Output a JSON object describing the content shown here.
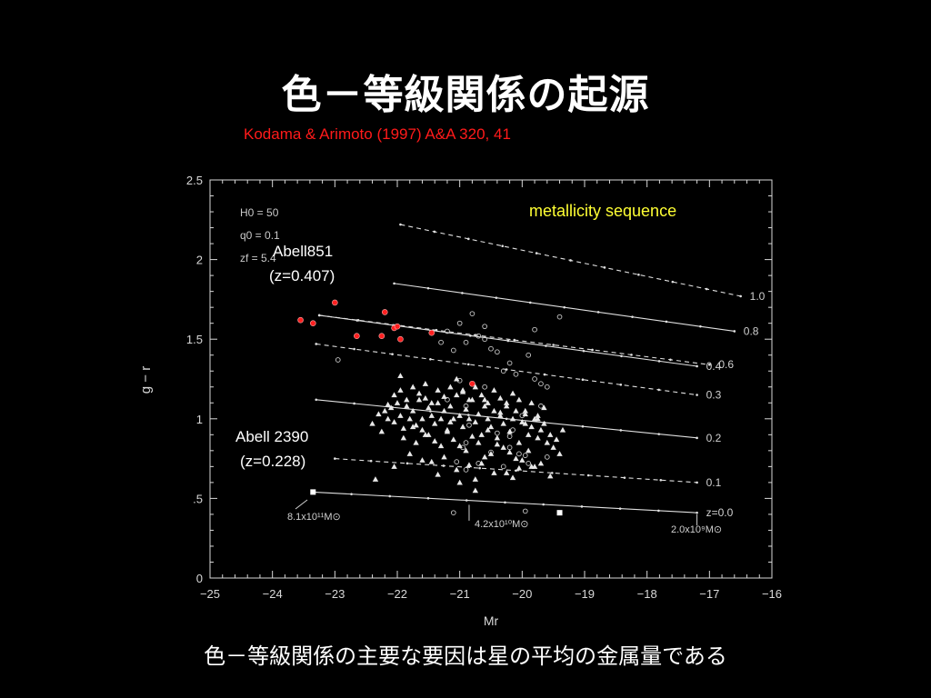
{
  "slide": {
    "title": "色－等級関係の起源",
    "subtitle": "Kodama & Arimoto (1997) A&A 320, 41",
    "caption": "色－等級関係の主要な要因は星の平均の金属量である"
  },
  "chart_data": {
    "type": "scatter",
    "xlabel": "Mr",
    "ylabel": "g − r",
    "xlim": [
      -25,
      -16
    ],
    "ylim": [
      0,
      2.5
    ],
    "x_ticks": [
      "−25",
      "−24",
      "−23",
      "−22",
      "−21",
      "−20",
      "−19",
      "−18",
      "−17",
      "−16"
    ],
    "y_ticks": [
      "0",
      ".5",
      "1",
      "1.5",
      "2",
      "2.5"
    ],
    "grid": false,
    "params": [
      "H0 = 50",
      "q0 = 0.1",
      "zf = 5.4"
    ],
    "annotations": {
      "metallicity": "metallicity sequence",
      "abell851_name": "Abell851",
      "abell851_z": "(z=0.407)",
      "abell2390_name": "Abell 2390",
      "abell2390_z": "(z=0.228)",
      "mass_high": "8.1x10¹¹M⊙",
      "mass_mid": "4.2x10¹⁰M⊙",
      "mass_low": "2.0x10⁹M⊙"
    },
    "colors": {
      "axes": "#d8d8d8",
      "abell851": "#ff2020",
      "metallicity": "#ffff33",
      "model": "#e0e0e0"
    },
    "models": [
      {
        "label": "1.0",
        "dashed": true,
        "x": [
          -21.95,
          -16.5
        ],
        "y": [
          2.22,
          1.77
        ]
      },
      {
        "label": "0.8",
        "dashed": false,
        "x": [
          -22.05,
          -16.6
        ],
        "y": [
          1.85,
          1.55
        ]
      },
      {
        "label": "0.6",
        "dashed": true,
        "x": [
          -23.25,
          -17.0
        ],
        "y": [
          1.65,
          1.34
        ]
      },
      {
        "label": "0.4",
        "dashed": false,
        "x": [
          -23.25,
          -17.2
        ],
        "y": [
          1.65,
          1.33
        ]
      },
      {
        "label": "0.3",
        "dashed": true,
        "x": [
          -23.3,
          -17.2
        ],
        "y": [
          1.47,
          1.15
        ]
      },
      {
        "label": "0.2",
        "dashed": false,
        "x": [
          -23.3,
          -17.2
        ],
        "y": [
          1.12,
          0.88
        ]
      },
      {
        "label": "0.1",
        "dashed": true,
        "x": [
          -23.0,
          -17.2
        ],
        "y": [
          0.75,
          0.6
        ]
      },
      {
        "label": "z=0.0",
        "dashed": false,
        "x": [
          -23.35,
          -17.2
        ],
        "y": [
          0.54,
          0.41
        ]
      }
    ],
    "series": [
      {
        "name": "Abell851",
        "marker": "filled-circle",
        "x": [
          -23.55,
          -23.35,
          -23.0,
          -22.65,
          -22.25,
          -22.2,
          -22.05,
          -22.0,
          -21.95,
          -21.45,
          -20.8
        ],
        "y": [
          1.62,
          1.6,
          1.73,
          1.52,
          1.52,
          1.67,
          1.57,
          1.58,
          1.5,
          1.54,
          1.22
        ]
      },
      {
        "name": "Abell851 open",
        "marker": "open-circle",
        "x": [
          -22.95,
          -21.2,
          -21.1,
          -21.0,
          -20.9,
          -20.7,
          -20.6,
          -20.5,
          -20.3,
          -20.2,
          -20.1,
          -19.9,
          -19.8,
          -19.7,
          -19.6,
          -21.0,
          -20.6,
          -19.8,
          -19.4,
          -20.6,
          -20.8,
          -21.3,
          -20.4,
          -21.2,
          -20.9,
          -20.0,
          -19.7,
          -20.9,
          -20.7,
          -20.9,
          -19.95,
          -20.95,
          -21.05,
          -20.05,
          -20.2,
          -20.5,
          -20.4,
          -20.3,
          -20.85,
          -19.9,
          -19.6,
          -21.1,
          -20.2,
          -19.95,
          -20.15
        ],
        "y": [
          1.37,
          1.55,
          1.43,
          1.6,
          1.48,
          1.52,
          1.5,
          1.44,
          1.3,
          1.35,
          1.28,
          1.4,
          1.25,
          1.22,
          1.2,
          1.24,
          1.2,
          1.56,
          1.64,
          1.58,
          1.66,
          1.48,
          1.42,
          1.12,
          1.08,
          1.02,
          1.08,
          0.85,
          0.72,
          0.68,
          0.42,
          0.82,
          0.73,
          0.78,
          0.82,
          0.79,
          0.91,
          0.7,
          0.96,
          0.72,
          0.76,
          0.41,
          0.89,
          0.77,
          0.93
        ]
      },
      {
        "name": "Abell 2390",
        "marker": "triangle",
        "x": [
          -22.4,
          -22.3,
          -22.25,
          -22.2,
          -22.15,
          -22.1,
          -22.05,
          -22.0,
          -21.95,
          -21.9,
          -21.85,
          -21.8,
          -21.75,
          -21.7,
          -21.65,
          -21.6,
          -21.55,
          -21.5,
          -21.45,
          -21.4,
          -21.35,
          -21.3,
          -21.25,
          -21.2,
          -21.15,
          -21.1,
          -21.05,
          -21.0,
          -20.95,
          -20.9,
          -20.85,
          -20.8,
          -20.75,
          -20.7,
          -20.65,
          -20.6,
          -20.55,
          -20.5,
          -20.45,
          -20.4,
          -20.35,
          -20.3,
          -20.25,
          -20.2,
          -20.15,
          -20.1,
          -20.05,
          -20.0,
          -19.95,
          -19.9,
          -19.85,
          -19.8,
          -19.75,
          -19.7,
          -19.65,
          -19.6,
          -19.55,
          -19.5,
          -19.45,
          -19.4,
          -22.05,
          -21.95,
          -21.85,
          -21.75,
          -21.65,
          -21.55,
          -21.45,
          -21.35,
          -21.25,
          -21.15,
          -21.05,
          -20.95,
          -20.85,
          -20.75,
          -20.65,
          -20.55,
          -20.45,
          -20.35,
          -20.25,
          -20.15,
          -20.05,
          -19.95,
          -19.85,
          -19.75,
          -19.65,
          -21.9,
          -21.7,
          -21.5,
          -21.3,
          -21.1,
          -20.9,
          -20.7,
          -20.5,
          -20.3,
          -20.1,
          -19.9,
          -19.7,
          -21.8,
          -21.6,
          -21.4,
          -21.2,
          -21.0,
          -20.8,
          -20.6,
          -20.4,
          -20.2,
          -20.0,
          -19.8,
          -21.45,
          -21.05,
          -20.65,
          -20.25,
          -19.85,
          -21.25,
          -20.85,
          -20.45,
          -20.05,
          -19.55,
          -21.75,
          -21.15,
          -20.55,
          -19.95,
          -22.15,
          -21.55,
          -20.95,
          -20.35,
          -19.75,
          -22.05,
          -21.35,
          -20.75,
          -20.15,
          -21.95,
          -20.6,
          -19.35,
          -20.75,
          -22.35,
          -21.6,
          -21.0
        ],
        "y": [
          0.97,
          1.03,
          0.92,
          1.05,
          1.0,
          1.07,
          0.98,
          1.1,
          1.02,
          0.94,
          1.08,
          1.0,
          1.05,
          0.96,
          1.12,
          1.0,
          0.9,
          1.07,
          1.02,
          0.97,
          1.1,
          1.0,
          1.05,
          0.93,
          1.08,
          1.0,
          1.15,
          1.02,
          0.95,
          1.06,
          1.0,
          1.12,
          0.98,
          1.03,
          0.9,
          1.08,
          1.0,
          0.95,
          1.05,
          0.88,
          1.02,
          0.97,
          1.1,
          0.92,
          1.0,
          1.05,
          0.85,
          0.98,
          1.03,
          0.9,
          0.95,
          1.0,
          0.88,
          0.93,
          0.97,
          0.85,
          0.9,
          0.82,
          0.87,
          0.78,
          1.15,
          1.18,
          1.12,
          1.2,
          1.16,
          1.22,
          1.1,
          1.18,
          1.14,
          1.2,
          1.25,
          1.17,
          1.12,
          1.2,
          1.15,
          1.1,
          1.18,
          1.13,
          1.08,
          1.16,
          1.12,
          1.05,
          1.1,
          1.02,
          1.07,
          0.88,
          0.85,
          0.9,
          0.83,
          0.87,
          0.8,
          0.85,
          0.78,
          0.82,
          0.75,
          0.8,
          0.72,
          0.78,
          0.93,
          0.86,
          0.92,
          0.83,
          0.89,
          0.76,
          0.84,
          0.79,
          0.74,
          0.7,
          0.73,
          0.68,
          0.72,
          0.66,
          0.7,
          0.76,
          0.71,
          0.66,
          0.69,
          0.64,
          0.95,
          0.98,
          0.93,
          0.97,
          1.09,
          1.13,
          1.18,
          1.04,
          1.0,
          0.7,
          0.65,
          0.62,
          0.63,
          1.27,
          1.12,
          0.93,
          0.55,
          0.62,
          0.74,
          0.6
        ]
      }
    ]
  }
}
